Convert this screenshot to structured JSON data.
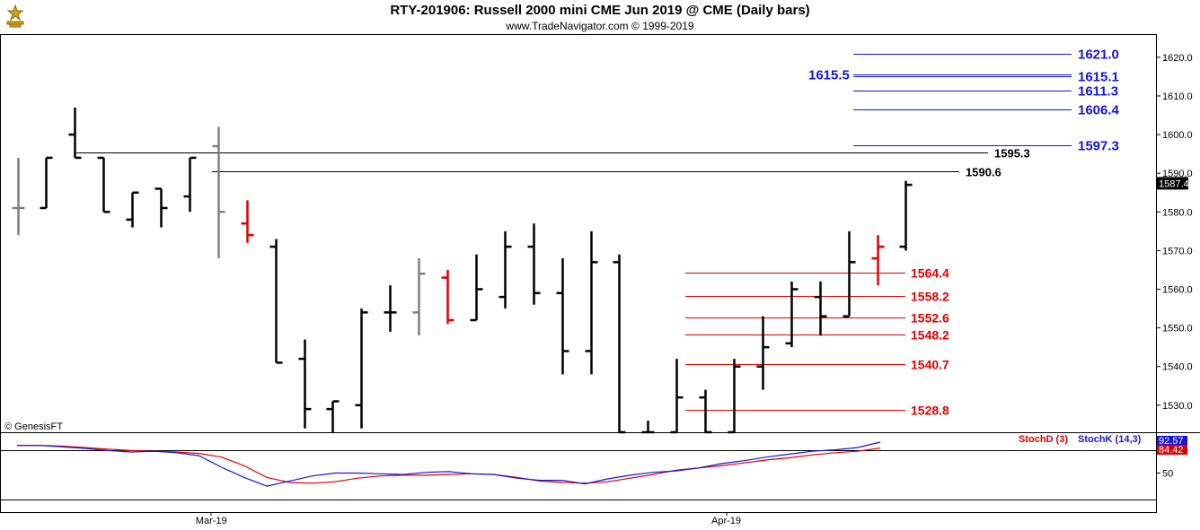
{
  "header": {
    "title": "RTY-201906:  Russell 2000 mini CME Jun 2019 @ CME  (Daily bars)",
    "subtitle": "www.TradeNavigator.com © 1999-2019"
  },
  "copyright": "© GenesisFT",
  "chart_data": [
    {
      "type": "ohlc",
      "ylim": [
        1523,
        1626
      ],
      "yticks": [
        "1530.0",
        "1540.0",
        "1550.0",
        "1560.0",
        "1570.0",
        "1580.0",
        "1590.0",
        "1600.0",
        "1610.0",
        "1620.0"
      ],
      "last_price": "1587.4",
      "bars": [
        {
          "h": 1594,
          "l": 1574,
          "o": 1581,
          "c": 1581,
          "col": "#808080"
        },
        {
          "h": 1594,
          "l": 1581,
          "o": 1581,
          "c": 1594,
          "col": "#000000"
        },
        {
          "h": 1607,
          "l": 1594,
          "o": 1600,
          "c": 1594,
          "col": "#000000"
        },
        {
          "h": 1594,
          "l": 1580,
          "o": 1594,
          "c": 1580,
          "col": "#000000"
        },
        {
          "h": 1585,
          "l": 1576,
          "o": 1578,
          "c": 1585,
          "col": "#000000"
        },
        {
          "h": 1586,
          "l": 1576,
          "o": 1586,
          "c": 1581,
          "col": "#000000"
        },
        {
          "h": 1594,
          "l": 1580,
          "o": 1584,
          "c": 1594,
          "col": "#000000"
        },
        {
          "h": 1602,
          "l": 1568,
          "o": 1597,
          "c": 1580,
          "col": "#808080"
        },
        {
          "h": 1583,
          "l": 1572,
          "o": 1577,
          "c": 1574,
          "col": "#e00000"
        },
        {
          "h": 1573,
          "l": 1541,
          "o": 1571,
          "c": 1541,
          "col": "#000000"
        },
        {
          "h": 1547,
          "l": 1524,
          "o": 1542,
          "c": 1529,
          "col": "#000000"
        },
        {
          "h": 1531,
          "l": 1522,
          "o": 1529,
          "c": 1531,
          "col": "#000000"
        },
        {
          "h": 1555,
          "l": 1524,
          "o": 1530,
          "c": 1554,
          "col": "#000000"
        },
        {
          "h": 1561,
          "l": 1549,
          "o": 1554,
          "c": 1554,
          "col": "#000000"
        },
        {
          "h": 1568,
          "l": 1548,
          "o": 1554,
          "c": 1564,
          "col": "#808080"
        },
        {
          "h": 1565,
          "l": 1551,
          "o": 1563,
          "c": 1552,
          "col": "#e00000"
        },
        {
          "h": 1569,
          "l": 1552,
          "o": 1552,
          "c": 1560,
          "col": "#000000"
        },
        {
          "h": 1575,
          "l": 1555,
          "o": 1558,
          "c": 1571,
          "col": "#000000"
        },
        {
          "h": 1577,
          "l": 1556,
          "o": 1571,
          "c": 1559,
          "col": "#000000"
        },
        {
          "h": 1568,
          "l": 1538,
          "o": 1559,
          "c": 1544,
          "col": "#000000"
        },
        {
          "h": 1575,
          "l": 1538,
          "o": 1544,
          "c": 1567,
          "col": "#000000"
        },
        {
          "h": 1569,
          "l": 1523,
          "o": 1567,
          "c": 1523,
          "col": "#000000"
        },
        {
          "h": 1526,
          "l": 1523,
          "o": 1523,
          "c": 1523,
          "col": "#000000"
        },
        {
          "h": 1542,
          "l": 1523,
          "o": 1523,
          "c": 1532,
          "col": "#000000"
        },
        {
          "h": 1534,
          "l": 1523,
          "o": 1532,
          "c": 1523,
          "col": "#000000"
        },
        {
          "h": 1542,
          "l": 1523,
          "o": 1523,
          "c": 1540,
          "col": "#000000"
        },
        {
          "h": 1553,
          "l": 1534,
          "o": 1540,
          "c": 1545,
          "col": "#000000"
        },
        {
          "h": 1562,
          "l": 1545,
          "o": 1546,
          "c": 1560,
          "col": "#000000"
        },
        {
          "h": 1562,
          "l": 1548,
          "o": 1558,
          "c": 1553,
          "col": "#000000"
        },
        {
          "h": 1575,
          "l": 1553,
          "o": 1553,
          "c": 1567,
          "col": "#000000"
        },
        {
          "h": 1574,
          "l": 1561,
          "o": 1568,
          "c": 1571,
          "col": "#e00000"
        },
        {
          "h": 1588,
          "l": 1570,
          "o": 1571,
          "c": 1587,
          "col": "#000000"
        }
      ],
      "levels": [
        {
          "value": 1621.0,
          "label": "1621.0",
          "color": "#1515d8"
        },
        {
          "value": 1615.5,
          "label": "1615.5",
          "color": "#1515d8"
        },
        {
          "value": 1615.1,
          "label": "1615.1",
          "color": "#1515d8"
        },
        {
          "value": 1611.3,
          "label": "1611.3",
          "color": "#1515d8"
        },
        {
          "value": 1606.4,
          "label": "1606.4",
          "color": "#1515d8"
        },
        {
          "value": 1597.3,
          "label": "1597.3",
          "color": "#1515d8"
        },
        {
          "value": 1595.3,
          "label": "1595.3",
          "color": "#000000"
        },
        {
          "value": 1590.6,
          "label": "1590.6",
          "color": "#000000"
        },
        {
          "value": 1564.4,
          "label": "1564.4",
          "color": "#e00000"
        },
        {
          "value": 1558.2,
          "label": "1558.2",
          "color": "#e00000"
        },
        {
          "value": 1552.6,
          "label": "1552.6",
          "color": "#e00000"
        },
        {
          "value": 1548.2,
          "label": "1548.2",
          "color": "#e00000"
        },
        {
          "value": 1540.7,
          "label": "1540.7",
          "color": "#e00000"
        },
        {
          "value": 1528.8,
          "label": "1528.8",
          "color": "#e00000"
        }
      ],
      "xticks": [
        {
          "bar": 7,
          "label": "Mar-19"
        },
        {
          "bar": 25,
          "label": "Apr-19"
        }
      ]
    },
    {
      "type": "line",
      "ylim": [
        0,
        100
      ],
      "ytick": "50",
      "series": [
        {
          "name": "StochD (3)",
          "color": "#e00000",
          "values": [
            88,
            88,
            87,
            85,
            83,
            81,
            80,
            79,
            77,
            72,
            60,
            44,
            37,
            36,
            38,
            43,
            46,
            47,
            47,
            48,
            49,
            48,
            44,
            39,
            37,
            36,
            38,
            43,
            48,
            54,
            57,
            60,
            64,
            68,
            71,
            75,
            78,
            80,
            84.42
          ]
        },
        {
          "name": "StochK (14,3)",
          "color": "#1515d8",
          "values": [
            88,
            88,
            86,
            84,
            81,
            79,
            80,
            78,
            74,
            58,
            44,
            32,
            39,
            46,
            50,
            50,
            49,
            48,
            51,
            52,
            49,
            48,
            43,
            40,
            40,
            35,
            42,
            47,
            51,
            53,
            57,
            63,
            67,
            72,
            76,
            80,
            82,
            85,
            92.57
          ]
        }
      ],
      "last_values": [
        "92.57",
        "84.42"
      ]
    }
  ]
}
